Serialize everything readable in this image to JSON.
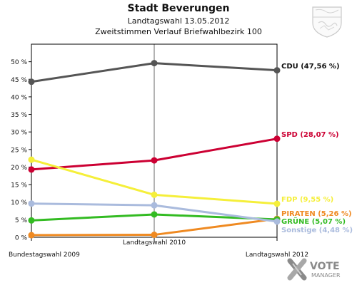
{
  "chart_data": {
    "type": "line",
    "title": "Stadt Beverungen",
    "subtitle_1": "Landtagswahl 13.05.2012",
    "subtitle_2": "Zweitstimmen Verlauf Briefwahlbezirk 100",
    "categories": [
      "Bundestagswahl 2009",
      "Landtagswahl 2010",
      "Landtagswahl 2012"
    ],
    "ylim": [
      0,
      55
    ],
    "yticks": [
      "0 %",
      "5 %",
      "10 %",
      "15 %",
      "20 %",
      "25 %",
      "30 %",
      "35 %",
      "40 %",
      "45 %",
      "50 %"
    ],
    "grid": false,
    "series": [
      {
        "name": "CDU",
        "label": "CDU (47,56 %)",
        "color": "#555555",
        "values": [
          44.3,
          49.6,
          47.56
        ]
      },
      {
        "name": "SPD",
        "label": "SPD (28,07 %)",
        "color": "#cc0033",
        "values": [
          19.3,
          21.9,
          28.07
        ]
      },
      {
        "name": "FDP",
        "label": "FDP (9,55 %)",
        "color": "#f5ef3a",
        "values": [
          22.1,
          12.1,
          9.55
        ]
      },
      {
        "name": "PIRATEN",
        "label": "PIRATEN (5,26 %)",
        "color": "#ef8a22",
        "values": [
          0.6,
          0.7,
          5.26
        ]
      },
      {
        "name": "GRÜNE",
        "label": "GRÜNE (5,07 %)",
        "color": "#33bb22",
        "values": [
          4.8,
          6.5,
          5.07
        ]
      },
      {
        "name": "Sonstige",
        "label": "Sonstige (4,48 %)",
        "color": "#aabbdd",
        "values": [
          9.6,
          9.1,
          4.48
        ]
      }
    ]
  },
  "branding": {
    "logo_text_1": "VOTE",
    "logo_text_2": "MANAGER",
    "crest_icon": "coat-of-arms-icon"
  }
}
